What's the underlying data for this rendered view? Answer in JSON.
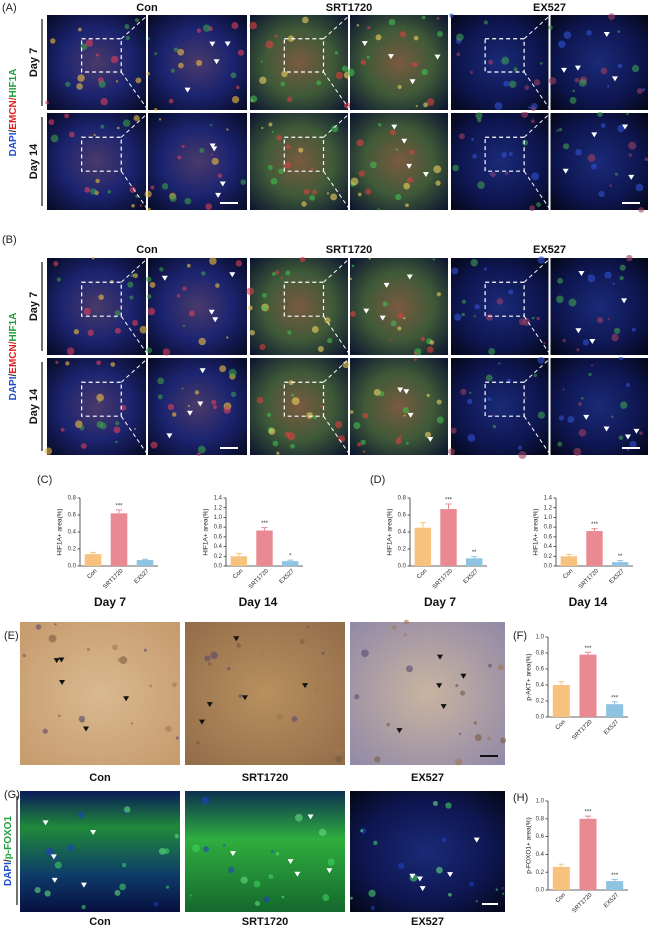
{
  "panels": {
    "A": {
      "label": "(A)",
      "columns": [
        "Con",
        "SRT1720",
        "EX527"
      ],
      "rows": [
        "Day 7",
        "Day 14"
      ],
      "stain": [
        "DAPI",
        "/",
        "EMCN/",
        "HIF1A"
      ]
    },
    "B": {
      "label": "(B)",
      "columns": [
        "Con",
        "SRT1720",
        "EX527"
      ],
      "rows": [
        "Day 7",
        "Day 14"
      ],
      "stain": [
        "DAPI",
        "/",
        "EMCN/",
        "HIF1A"
      ]
    },
    "C": {
      "label": "(C)"
    },
    "D": {
      "label": "(D)"
    },
    "E": {
      "label": "(E)",
      "columns": [
        "Con",
        "SRT1720",
        "EX527"
      ]
    },
    "F": {
      "label": "(F)"
    },
    "G": {
      "label": "(G)",
      "columns": [
        "Con",
        "SRT1720",
        "EX527"
      ],
      "stain": [
        "DAPI",
        "/",
        "p-FOXO1"
      ]
    },
    "H": {
      "label": "(H)"
    }
  },
  "chart_data": [
    {
      "type": "bar",
      "ylabel": "HIF1A+ area(%)",
      "subtitle": "Day 7",
      "categories": [
        "Con",
        "SRT1720",
        "EX527"
      ],
      "values": [
        0.14,
        0.62,
        0.07
      ],
      "errors": [
        0.02,
        0.04,
        0.01
      ],
      "annotations": [
        null,
        "***",
        null
      ],
      "colors": [
        "#f7c27d",
        "#e98a93",
        "#8fc3e2"
      ],
      "ylim": [
        0,
        0.8
      ],
      "yticks": [
        {
          "value": 0,
          "label": "0.0"
        },
        0.2,
        0.4,
        0.6,
        0.8
      ]
    },
    {
      "type": "bar",
      "ylabel": "HIF1A+ area(%)",
      "subtitle": "Day 14",
      "categories": [
        "Con",
        "SRT1720",
        "EX527"
      ],
      "values": [
        0.2,
        0.73,
        0.1
      ],
      "errors": [
        0.06,
        0.06,
        0.02
      ],
      "annotations": [
        null,
        "***",
        "*"
      ],
      "colors": [
        "#f7c27d",
        "#e98a93",
        "#8fc3e2"
      ],
      "ylim": [
        0,
        1.4
      ],
      "yticks": [
        {
          "value": 0,
          "label": "0.0"
        },
        0.2,
        0.4,
        0.6,
        0.8,
        {
          "value": 1,
          "label": "1.0"
        },
        1.2,
        1.4
      ]
    },
    {
      "type": "bar",
      "ylabel": "HIF1A+ area(%)",
      "subtitle": "Day 7",
      "categories": [
        "Con",
        "SRT1720",
        "EX527"
      ],
      "values": [
        0.45,
        0.67,
        0.09
      ],
      "errors": [
        0.06,
        0.06,
        0.02
      ],
      "annotations": [
        null,
        "***",
        "**"
      ],
      "colors": [
        "#f7c27d",
        "#e98a93",
        "#8fc3e2"
      ],
      "ylim": [
        0,
        0.8
      ],
      "yticks": [
        {
          "value": 0,
          "label": "0.0"
        },
        0.2,
        0.4,
        0.6,
        0.8
      ]
    },
    {
      "type": "bar",
      "ylabel": "HIF1A+ area(%)",
      "subtitle": "Day 14",
      "categories": [
        "Con",
        "SRT1720",
        "EX527"
      ],
      "values": [
        0.2,
        0.72,
        0.08
      ],
      "errors": [
        0.04,
        0.05,
        0.03
      ],
      "annotations": [
        null,
        "***",
        "**"
      ],
      "colors": [
        "#f7c27d",
        "#e98a93",
        "#8fc3e2"
      ],
      "ylim": [
        0,
        1.4
      ],
      "yticks": [
        {
          "value": 0,
          "label": "0.0"
        },
        0.2,
        0.4,
        0.6,
        0.8,
        {
          "value": 1,
          "label": "1.0"
        },
        1.2,
        1.4
      ]
    },
    {
      "type": "bar",
      "ylabel": "p-AKT+ area(%)",
      "categories": [
        "Con",
        "SRT1720",
        "EX527"
      ],
      "values": [
        0.4,
        0.78,
        0.16
      ],
      "errors": [
        0.04,
        0.03,
        0.03
      ],
      "annotations": [
        null,
        "***",
        "***"
      ],
      "colors": [
        "#f7c27d",
        "#e98a93",
        "#8fc3e2"
      ],
      "ylim": [
        0,
        1
      ],
      "yticks": [
        {
          "value": 0,
          "label": "0.0"
        },
        0.2,
        0.4,
        0.6,
        0.8,
        {
          "value": 1,
          "label": "1.0"
        }
      ]
    },
    {
      "type": "bar",
      "ylabel": "p-FOXO1+ area(%)",
      "categories": [
        "Con",
        "SRT1720",
        "EX527"
      ],
      "values": [
        0.26,
        0.8,
        0.1
      ],
      "errors": [
        0.03,
        0.03,
        0.02
      ],
      "annotations": [
        null,
        "***",
        "***"
      ],
      "colors": [
        "#f7c27d",
        "#e98a93",
        "#8fc3e2"
      ],
      "ylim": [
        0,
        1
      ],
      "yticks": [
        {
          "value": 0,
          "label": "0.0"
        },
        0.2,
        0.4,
        0.6,
        0.8,
        {
          "value": 1,
          "label": "1.0"
        }
      ]
    }
  ]
}
